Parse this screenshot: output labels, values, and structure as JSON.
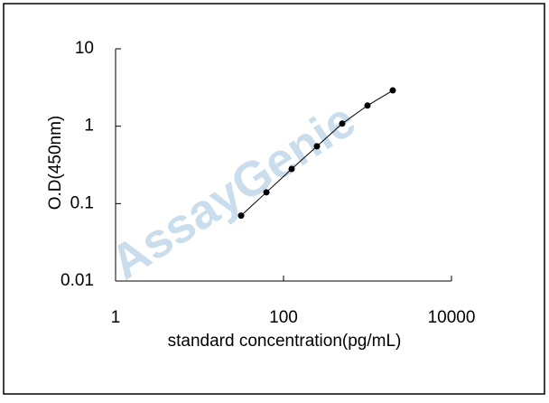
{
  "chart_data": {
    "type": "line",
    "x_label": "standard concentration(pg/mL)",
    "y_label": "O.D(450nm)",
    "watermark": "AssayGenie",
    "x": [
      31.25,
      62.5,
      125,
      250,
      500,
      1000,
      2000
    ],
    "series": [
      {
        "color": "#000000",
        "values": [
          0.07,
          0.14,
          0.28,
          0.55,
          1.08,
          1.85,
          2.9
        ]
      }
    ],
    "xlim": [
      1,
      10000
    ],
    "ylim": [
      0.01,
      10
    ],
    "xticks": [
      1,
      100,
      10000
    ],
    "yticks": [
      0.01,
      0.1,
      1,
      10
    ],
    "xscale": "log",
    "yscale": "log",
    "grid": false
  }
}
